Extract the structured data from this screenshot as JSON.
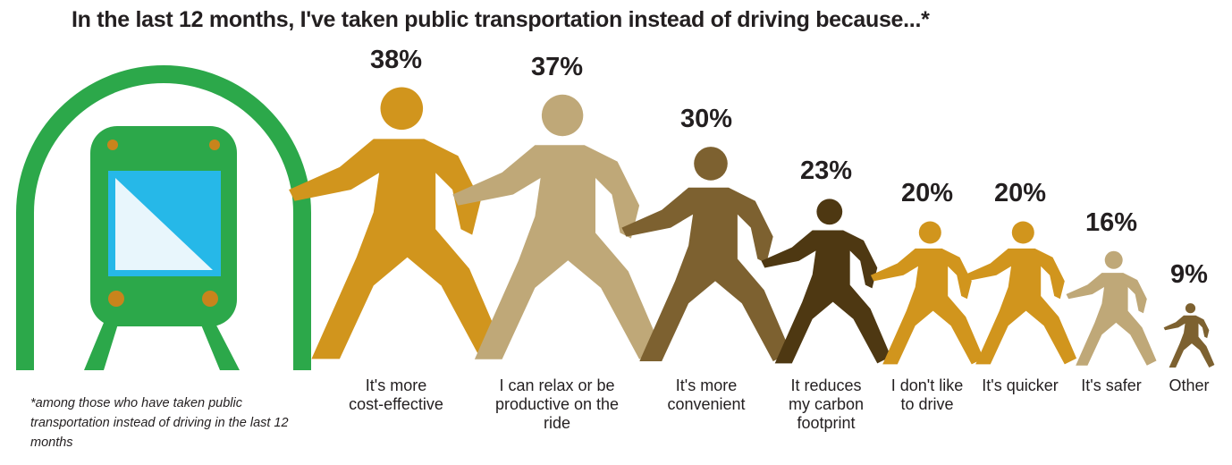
{
  "title": "In the last 12 months, I've taken public transportation instead of driving because...*",
  "footnote": "*among those who have taken public transportation instead of driving in the last 12 months",
  "colors": {
    "train_green": "#2ca84a",
    "screen_blue": "#26b8e8",
    "screen_light": "#e8f6fc",
    "train_light": "#c8841c"
  },
  "icon": "train-tunnel-icon",
  "chart_data": {
    "type": "bar",
    "title": "In the last 12 months, I've taken public transportation instead of driving because...*",
    "categories": [
      "It's more cost-effective",
      "I can relax or be productive on the ride",
      "It's more convenient",
      "It reduces my carbon footprint",
      "I don't like to drive",
      "It's quicker",
      "It's safer",
      "Other"
    ],
    "category_lines": [
      [
        "It's more",
        "cost-effective"
      ],
      [
        "I can relax or be",
        "productive on the",
        "ride"
      ],
      [
        "It's more",
        "convenient"
      ],
      [
        "It reduces",
        "my carbon",
        "footprint"
      ],
      [
        "I don't like",
        "to drive"
      ],
      [
        "It's quicker"
      ],
      [
        "It's safer"
      ],
      [
        "Other"
      ]
    ],
    "values": [
      38,
      37,
      30,
      23,
      20,
      20,
      16,
      9
    ],
    "value_labels": [
      "38%",
      "37%",
      "30%",
      "23%",
      "20%",
      "20%",
      "16%",
      "9%"
    ],
    "colors": [
      "#d1951d",
      "#bfa878",
      "#7d6130",
      "#4e3812",
      "#d1951d",
      "#d1951d",
      "#bfa878",
      "#7d6130"
    ],
    "mark": "walking-person-icon"
  }
}
